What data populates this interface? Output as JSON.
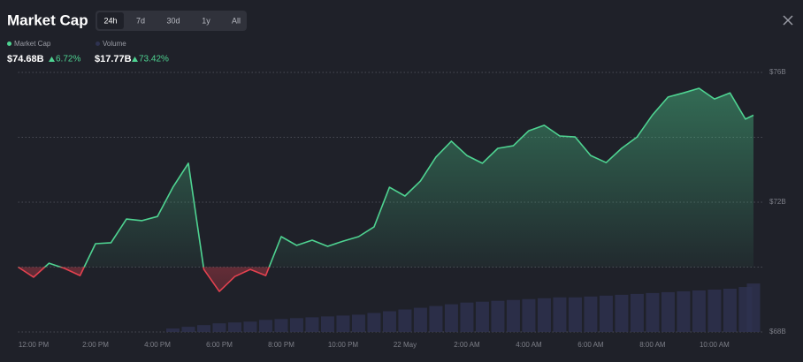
{
  "header": {
    "title": "Market Cap",
    "tabs": [
      "24h",
      "7d",
      "30d",
      "1y",
      "All"
    ],
    "active_tab": 0
  },
  "stats": [
    {
      "name": "Market Cap",
      "value": "$74.68B",
      "change": "6.72%"
    },
    {
      "name": "Volume",
      "value": "$17.77B",
      "change": "73.42%"
    }
  ],
  "chart_data": {
    "type": "area",
    "x": [
      -0.5,
      0,
      0.5,
      1,
      1.5,
      2,
      2.5,
      3,
      3.5,
      4,
      4.5,
      5,
      5.5,
      6,
      6.5,
      7,
      7.5,
      8,
      8.5,
      9,
      9.5,
      10,
      10.5,
      11,
      11.5,
      12,
      12.5,
      13,
      13.5,
      14,
      14.5,
      15,
      15.5,
      16,
      16.5,
      17,
      17.5,
      18,
      18.5,
      19,
      19.5,
      20,
      20.5,
      21,
      21.5,
      22,
      22.5,
      23,
      23.26
    ],
    "series": [
      {
        "name": "Market Cap",
        "color": "#4ed391",
        "down_color": "#e3414f",
        "values": [
          70.0,
          69.69,
          70.12,
          69.96,
          69.74,
          70.72,
          70.75,
          71.48,
          71.43,
          71.56,
          72.46,
          73.2,
          69.93,
          69.25,
          69.71,
          69.93,
          69.74,
          70.94,
          70.67,
          70.83,
          70.64,
          70.8,
          70.94,
          71.24,
          72.46,
          72.19,
          72.65,
          73.39,
          73.88,
          73.44,
          73.2,
          73.66,
          73.74,
          74.2,
          74.37,
          74.04,
          74.01,
          73.44,
          73.22,
          73.66,
          74.01,
          74.69,
          75.24,
          75.37,
          75.51,
          75.18,
          75.37,
          74.56,
          74.68
        ]
      },
      {
        "name": "Volume",
        "color": "#2e3250",
        "axis": "y2",
        "values": [
          0,
          0,
          0,
          0,
          0,
          0,
          0,
          0,
          0,
          0,
          4,
          6,
          8,
          10,
          11,
          12,
          14,
          15,
          16,
          17,
          18,
          19,
          20,
          22,
          24,
          26,
          28,
          30,
          32,
          34,
          35,
          36,
          37,
          38,
          39,
          40,
          40,
          41,
          42,
          43,
          44,
          45,
          46,
          47,
          48,
          49,
          50,
          52,
          56
        ]
      }
    ],
    "xlim": [
      -0.5,
      23.26
    ],
    "xticks": [
      {
        "value": 0,
        "label": "12:00 PM"
      },
      {
        "value": 2,
        "label": "2:00 PM"
      },
      {
        "value": 4,
        "label": "4:00 PM"
      },
      {
        "value": 6,
        "label": "6:00 PM"
      },
      {
        "value": 8,
        "label": "8:00 PM"
      },
      {
        "value": 10,
        "label": "10:00 PM"
      },
      {
        "value": 12,
        "label": "22 May"
      },
      {
        "value": 14,
        "label": "2:00 AM"
      },
      {
        "value": 16,
        "label": "4:00 AM"
      },
      {
        "value": 18,
        "label": "6:00 AM"
      },
      {
        "value": 20,
        "label": "8:00 AM"
      },
      {
        "value": 22,
        "label": "10:00 AM"
      }
    ],
    "ylim": [
      68,
      76
    ],
    "yticks": [
      {
        "value": 68,
        "label": "$68B"
      },
      {
        "value": 70,
        "label": null
      },
      {
        "value": 72,
        "label": "$72B"
      },
      {
        "value": 74,
        "label": null
      },
      {
        "value": 76,
        "label": "$76B"
      }
    ],
    "y2lim": [
      0,
      300
    ],
    "grid": true
  }
}
